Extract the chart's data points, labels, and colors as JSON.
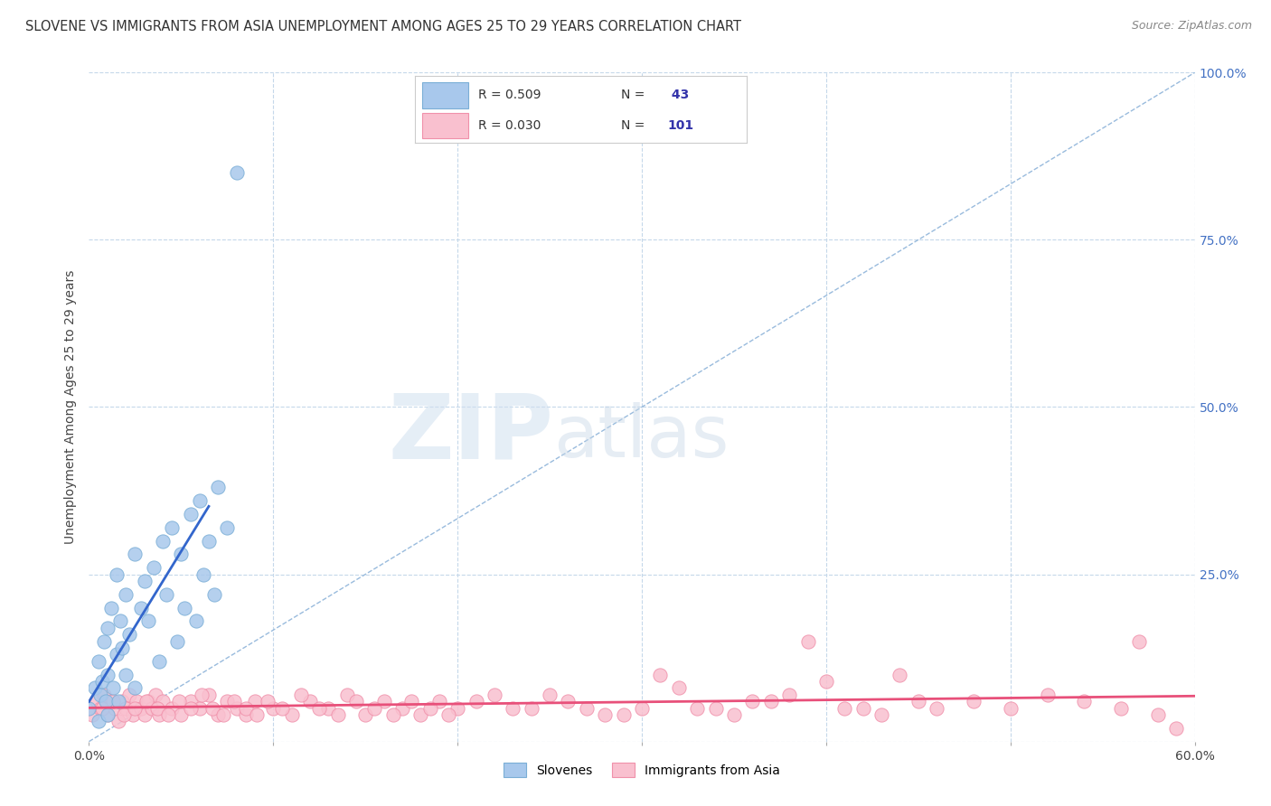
{
  "title": "SLOVENE VS IMMIGRANTS FROM ASIA UNEMPLOYMENT AMONG AGES 25 TO 29 YEARS CORRELATION CHART",
  "source": "Source: ZipAtlas.com",
  "ylabel": "Unemployment Among Ages 25 to 29 years",
  "xlim": [
    0.0,
    0.6
  ],
  "ylim": [
    0.0,
    1.0
  ],
  "yticks": [
    0.0,
    0.25,
    0.5,
    0.75,
    1.0
  ],
  "ytick_labels_right": [
    "",
    "25.0%",
    "50.0%",
    "75.0%",
    "100.0%"
  ],
  "blue_R": 0.509,
  "blue_N": 43,
  "pink_R": 0.03,
  "pink_N": 101,
  "blue_scatter_color": "#a8c8ec",
  "blue_scatter_edge": "#7aaed6",
  "pink_scatter_color": "#f9c0cf",
  "pink_scatter_edge": "#f090aa",
  "blue_line_color": "#3366cc",
  "pink_line_color": "#e8507a",
  "diag_line_color": "#99bbdd",
  "watermark_zip": "ZIP",
  "watermark_atlas": "atlas",
  "legend_text_color": "#3333aa",
  "legend_label_color": "#555555",
  "slovenes_x": [
    0.0,
    0.003,
    0.005,
    0.005,
    0.006,
    0.007,
    0.008,
    0.009,
    0.01,
    0.01,
    0.01,
    0.012,
    0.013,
    0.015,
    0.015,
    0.016,
    0.017,
    0.018,
    0.02,
    0.02,
    0.022,
    0.025,
    0.025,
    0.028,
    0.03,
    0.032,
    0.035,
    0.038,
    0.04,
    0.042,
    0.045,
    0.048,
    0.05,
    0.052,
    0.055,
    0.058,
    0.06,
    0.062,
    0.065,
    0.068,
    0.07,
    0.075,
    0.08
  ],
  "slovenes_y": [
    0.05,
    0.08,
    0.03,
    0.12,
    0.07,
    0.09,
    0.15,
    0.06,
    0.1,
    0.17,
    0.04,
    0.2,
    0.08,
    0.13,
    0.25,
    0.06,
    0.18,
    0.14,
    0.22,
    0.1,
    0.16,
    0.28,
    0.08,
    0.2,
    0.24,
    0.18,
    0.26,
    0.12,
    0.3,
    0.22,
    0.32,
    0.15,
    0.28,
    0.2,
    0.34,
    0.18,
    0.36,
    0.25,
    0.3,
    0.22,
    0.38,
    0.32,
    0.85
  ],
  "immigrants_x": [
    0.002,
    0.004,
    0.006,
    0.008,
    0.01,
    0.012,
    0.014,
    0.016,
    0.018,
    0.02,
    0.022,
    0.024,
    0.026,
    0.028,
    0.03,
    0.032,
    0.034,
    0.036,
    0.038,
    0.04,
    0.045,
    0.05,
    0.055,
    0.06,
    0.065,
    0.07,
    0.075,
    0.08,
    0.085,
    0.09,
    0.1,
    0.11,
    0.12,
    0.13,
    0.14,
    0.15,
    0.16,
    0.17,
    0.18,
    0.19,
    0.2,
    0.22,
    0.24,
    0.26,
    0.28,
    0.3,
    0.32,
    0.34,
    0.36,
    0.38,
    0.4,
    0.42,
    0.44,
    0.46,
    0.48,
    0.5,
    0.52,
    0.54,
    0.56,
    0.58,
    0.007,
    0.013,
    0.019,
    0.025,
    0.031,
    0.037,
    0.043,
    0.049,
    0.055,
    0.061,
    0.067,
    0.073,
    0.079,
    0.085,
    0.091,
    0.097,
    0.105,
    0.115,
    0.125,
    0.135,
    0.145,
    0.155,
    0.165,
    0.175,
    0.185,
    0.195,
    0.21,
    0.23,
    0.25,
    0.27,
    0.29,
    0.31,
    0.33,
    0.35,
    0.37,
    0.39,
    0.41,
    0.43,
    0.45,
    0.57,
    0.59
  ],
  "immigrants_y": [
    0.04,
    0.06,
    0.05,
    0.07,
    0.04,
    0.06,
    0.05,
    0.03,
    0.06,
    0.05,
    0.07,
    0.04,
    0.06,
    0.05,
    0.04,
    0.06,
    0.05,
    0.07,
    0.04,
    0.06,
    0.05,
    0.04,
    0.06,
    0.05,
    0.07,
    0.04,
    0.06,
    0.05,
    0.04,
    0.06,
    0.05,
    0.04,
    0.06,
    0.05,
    0.07,
    0.04,
    0.06,
    0.05,
    0.04,
    0.06,
    0.05,
    0.07,
    0.05,
    0.06,
    0.04,
    0.05,
    0.08,
    0.05,
    0.06,
    0.07,
    0.09,
    0.05,
    0.1,
    0.05,
    0.06,
    0.05,
    0.07,
    0.06,
    0.05,
    0.04,
    0.05,
    0.06,
    0.04,
    0.05,
    0.06,
    0.05,
    0.04,
    0.06,
    0.05,
    0.07,
    0.05,
    0.04,
    0.06,
    0.05,
    0.04,
    0.06,
    0.05,
    0.07,
    0.05,
    0.04,
    0.06,
    0.05,
    0.04,
    0.06,
    0.05,
    0.04,
    0.06,
    0.05,
    0.07,
    0.05,
    0.04,
    0.1,
    0.05,
    0.04,
    0.06,
    0.15,
    0.05,
    0.04,
    0.06,
    0.15,
    0.02
  ]
}
